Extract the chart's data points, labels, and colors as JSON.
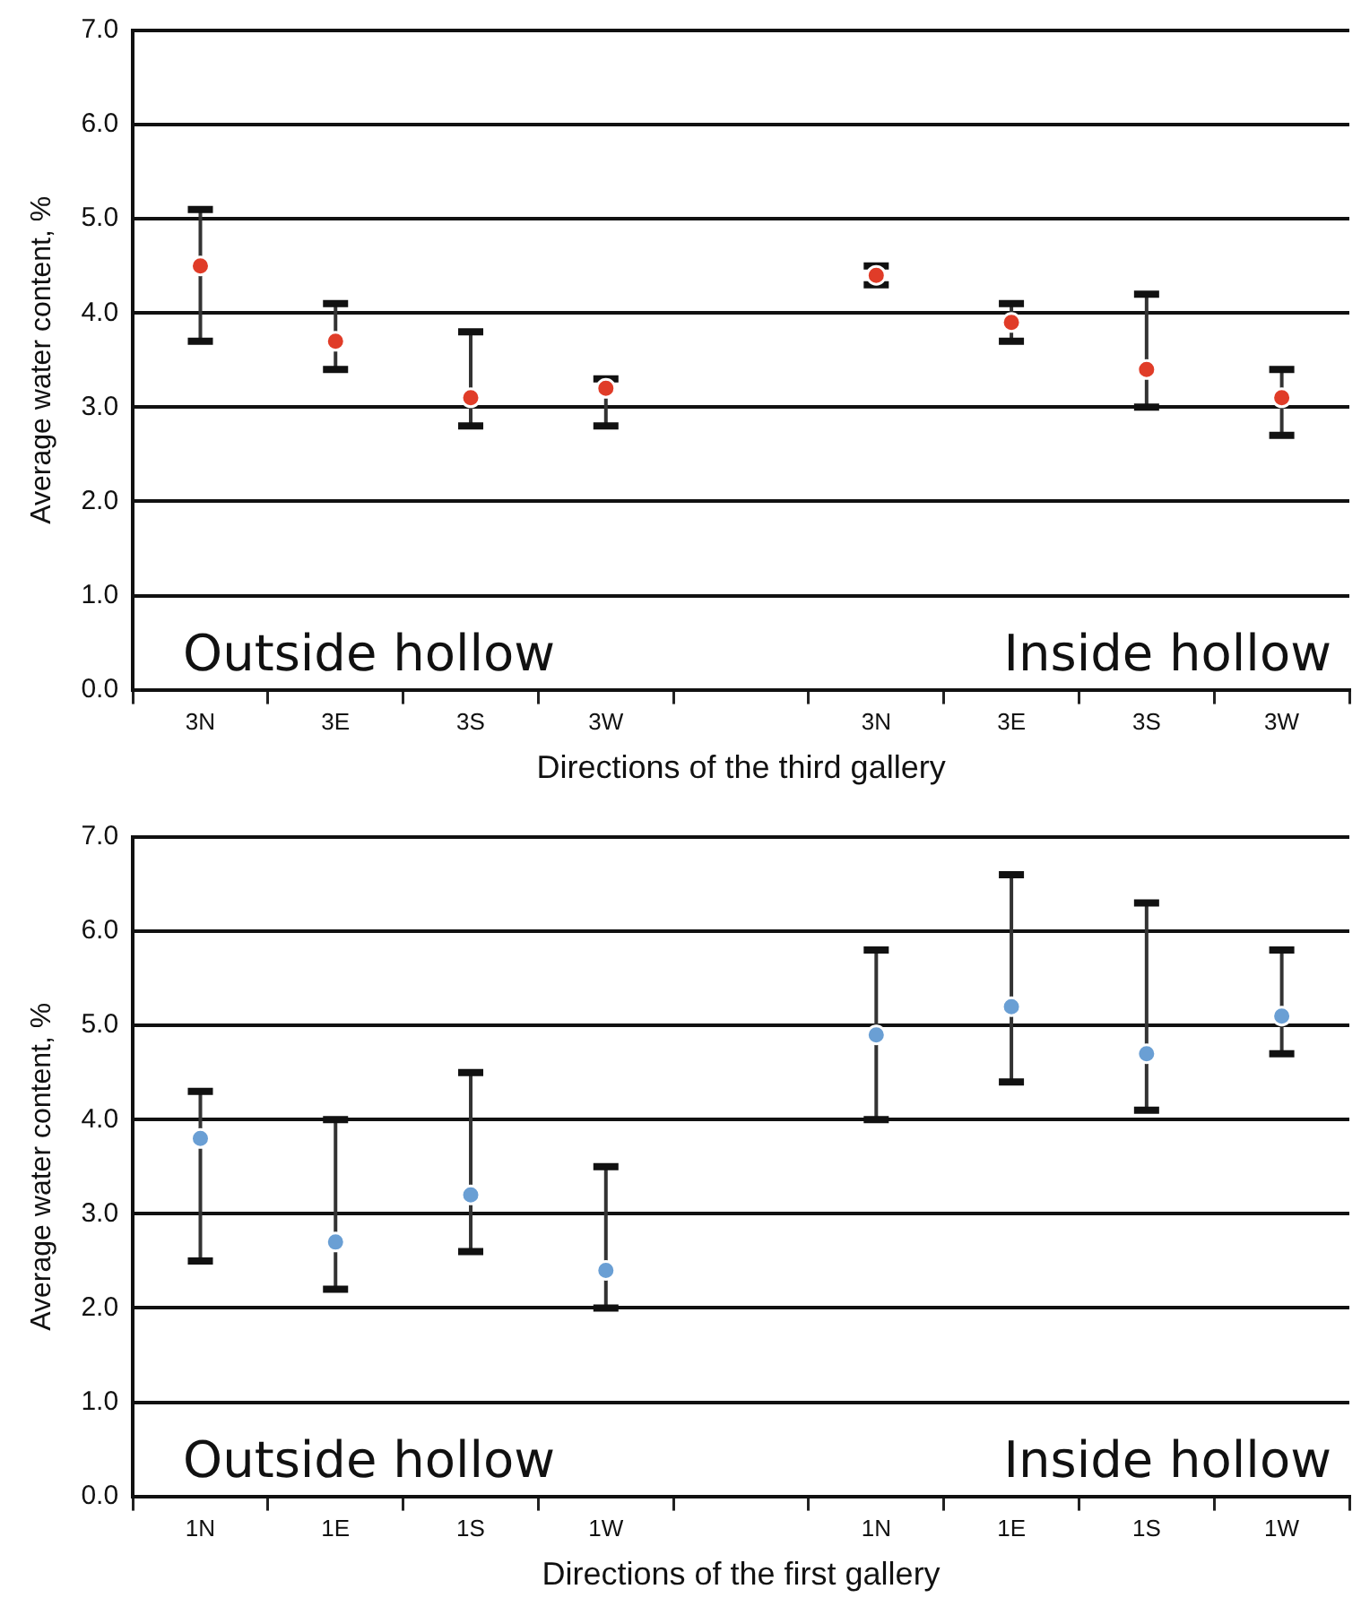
{
  "chart_data": [
    {
      "type": "scatter",
      "xlabel": "Directions of the third gallery",
      "ylabel": "Average water content, %",
      "categories": [
        "3N",
        "3E",
        "3S",
        "3W",
        null,
        "3N",
        "3E",
        "3S",
        "3W"
      ],
      "series": [
        {
          "color": "#e03c28",
          "values": [
            4.5,
            3.7,
            3.1,
            3.2,
            null,
            4.4,
            3.9,
            3.4,
            3.1
          ],
          "errors": [
            [
              3.7,
              5.1
            ],
            [
              3.4,
              4.1
            ],
            [
              2.8,
              3.8
            ],
            [
              2.8,
              3.3
            ],
            null,
            [
              4.3,
              4.5
            ],
            [
              3.7,
              4.1
            ],
            [
              3.0,
              4.2
            ],
            [
              2.7,
              3.4
            ]
          ]
        }
      ],
      "ylim": [
        0,
        7
      ],
      "yticks": [
        {
          "value": 0,
          "label": "0.0"
        },
        {
          "value": 1,
          "label": "1.0"
        },
        {
          "value": 2,
          "label": "2.0"
        },
        {
          "value": 3,
          "label": "3.0"
        },
        {
          "value": 4,
          "label": "4.0"
        },
        {
          "value": 5,
          "label": "5.0"
        },
        {
          "value": 6,
          "label": "6.0"
        },
        {
          "value": 7,
          "label": "7.0"
        }
      ],
      "grid": "y",
      "legend": false,
      "marker": "circle",
      "annotations": [
        "Outside hollow",
        "Inside hollow"
      ]
    },
    {
      "type": "scatter",
      "xlabel": "Directions of the first gallery",
      "ylabel": "Average water content, %",
      "categories": [
        "1N",
        "1E",
        "1S",
        "1W",
        null,
        "1N",
        "1E",
        "1S",
        "1W"
      ],
      "series": [
        {
          "color": "#6a9fd4",
          "values": [
            3.8,
            2.7,
            3.2,
            2.4,
            null,
            4.9,
            5.2,
            4.7,
            5.1
          ],
          "errors": [
            [
              2.5,
              4.3
            ],
            [
              2.2,
              4.0
            ],
            [
              2.6,
              4.5
            ],
            [
              2.0,
              3.5
            ],
            null,
            [
              4.0,
              5.8
            ],
            [
              4.4,
              6.6
            ],
            [
              4.1,
              6.3
            ],
            [
              4.7,
              5.8
            ]
          ]
        }
      ],
      "ylim": [
        0,
        7
      ],
      "yticks": [
        {
          "value": 0,
          "label": "0.0"
        },
        {
          "value": 1,
          "label": "1.0"
        },
        {
          "value": 2,
          "label": "2.0"
        },
        {
          "value": 3,
          "label": "3.0"
        },
        {
          "value": 4,
          "label": "4.0"
        },
        {
          "value": 5,
          "label": "5.0"
        },
        {
          "value": 6,
          "label": "6.0"
        },
        {
          "value": 7,
          "label": "7.0"
        }
      ],
      "grid": "y",
      "legend": false,
      "marker": "circle",
      "annotations": [
        "Outside hollow",
        "Inside hollow"
      ]
    }
  ]
}
